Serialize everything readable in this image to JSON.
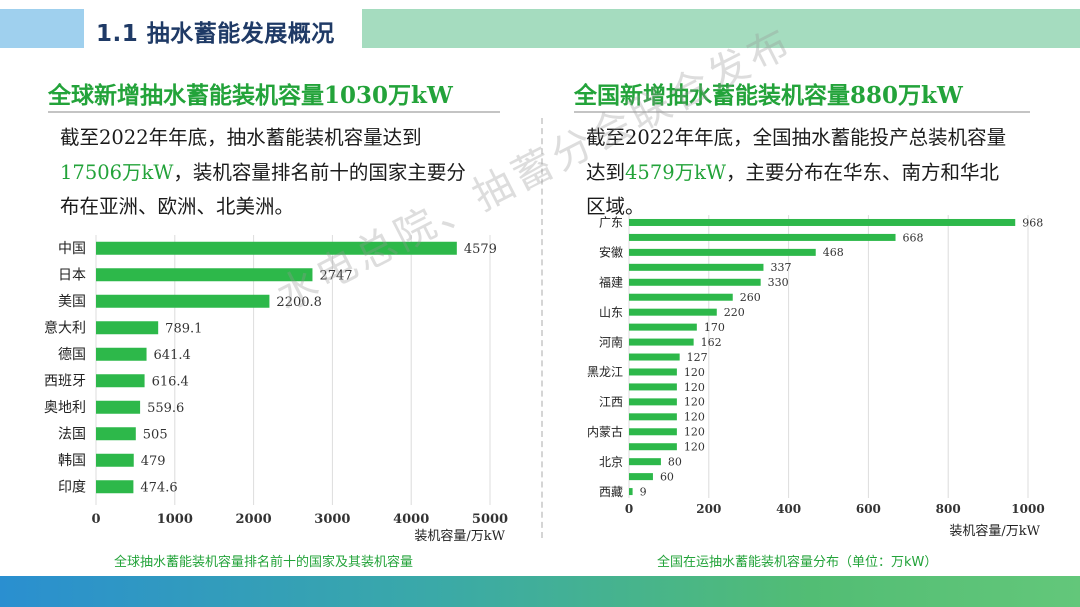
{
  "header": {
    "title": "1.1 抽水蓄能发展概况"
  },
  "left": {
    "subtitle": "全球新增抽水蓄能装机容量1030万kW",
    "para": {
      "line1": "截至2022年年底，抽水蓄能装机容量达到",
      "highlight": "17506万kW",
      "line2_rest": "，装机容量排名前十的国家主要分",
      "line3": "布在亚洲、欧洲、北美洲。"
    },
    "caption": "全球抽水蓄能装机容量排名前十的国家及其装机容量"
  },
  "right": {
    "subtitle": "全国新增抽水蓄能装机容量880万kW",
    "para": {
      "line1": "截至2022年年底，全国抽水蓄能投产总装机容量",
      "pre": "达到",
      "highlight": "4579万kW",
      "line2_rest": "，主要分布在华东、南方和华北",
      "line3": "区域。"
    },
    "caption": "全国在运抽水蓄能装机容量分布（单位：万kW）"
  },
  "watermark": "水电总院、抽蓄分会联合发布",
  "colors": {
    "accent": "#23a33a",
    "bar": "#2db84a"
  },
  "chart_data": [
    {
      "type": "bar",
      "orientation": "horizontal",
      "title": "全球抽水蓄能装机容量排名前十的国家及其装机容量",
      "categories": [
        "中国",
        "日本",
        "美国",
        "意大利",
        "德国",
        "西班牙",
        "奥地利",
        "法国",
        "韩国",
        "印度"
      ],
      "values": [
        4579,
        2747,
        2200.8,
        789.1,
        641.4,
        616.4,
        559.6,
        505,
        479,
        474.6
      ],
      "value_labels": [
        "4579",
        "2747",
        "2200.8",
        "789.1",
        "641.4",
        "616.4",
        "559.6",
        "505",
        "479",
        "474.6"
      ],
      "xlabel": "装机容量/万kW",
      "ylabel": "",
      "xlim": [
        0,
        5000
      ],
      "xticks": [
        0,
        1000,
        2000,
        3000,
        4000,
        5000
      ],
      "grid": true
    },
    {
      "type": "bar",
      "orientation": "horizontal",
      "title": "全国在运抽水蓄能装机容量分布（单位：万kW）",
      "categories": [
        "广东",
        "",
        "安徽",
        "",
        "福建",
        "",
        "山东",
        "",
        "河南",
        "",
        "黑龙江",
        "",
        "江西",
        "",
        "内蒙古",
        "",
        "北京",
        "",
        "西藏"
      ],
      "values": [
        968,
        668,
        468,
        337,
        330,
        260,
        220,
        170,
        162,
        127,
        120,
        120,
        120,
        120,
        120,
        120,
        80,
        60,
        9
      ],
      "value_labels": [
        "968",
        "668",
        "468",
        "337",
        "330",
        "260",
        "220",
        "170",
        "162",
        "127",
        "120",
        "120",
        "120",
        "120",
        "120",
        "120",
        "80",
        "60",
        "9"
      ],
      "xlabel": "装机容量/万kW",
      "ylabel": "",
      "xlim": [
        0,
        1000
      ],
      "xticks": [
        0,
        200,
        400,
        600,
        800,
        1000
      ],
      "grid": true
    }
  ]
}
